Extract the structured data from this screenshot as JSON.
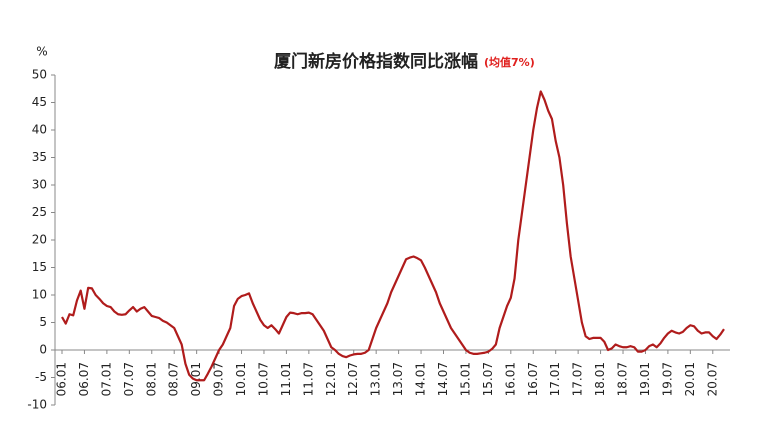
{
  "chart_data": {
    "type": "line",
    "title": "厦门新房价格指数同比涨幅",
    "annotation": "(均值7%)",
    "ylabel": "%",
    "color": "#b01c1c",
    "categories": [
      "06.01",
      null,
      null,
      null,
      null,
      null,
      "06.07",
      null,
      null,
      null,
      null,
      null,
      "07.01",
      null,
      null,
      null,
      null,
      null,
      "07.07",
      null,
      null,
      null,
      null,
      null,
      "08.01",
      null,
      null,
      null,
      null,
      null,
      "08.07",
      null,
      null,
      null,
      null,
      null,
      "09.01",
      null,
      null,
      null,
      null,
      null,
      "09.07",
      null,
      null,
      null,
      null,
      null,
      "10.01",
      null,
      null,
      null,
      null,
      null,
      "10.07",
      null,
      null,
      null,
      null,
      null,
      "11.01",
      null,
      null,
      null,
      null,
      null,
      "11.07",
      null,
      null,
      null,
      null,
      null,
      "12.01",
      null,
      null,
      null,
      null,
      null,
      "12.07",
      null,
      null,
      null,
      null,
      null,
      "13.01",
      null,
      null,
      null,
      null,
      null,
      "13.07",
      null,
      null,
      null,
      null,
      null,
      "14.01",
      null,
      null,
      null,
      null,
      null,
      "14.07",
      null,
      null,
      null,
      null,
      null,
      "15.01",
      null,
      null,
      null,
      null,
      null,
      "15.07",
      null,
      null,
      null,
      null,
      null,
      "16.01",
      null,
      null,
      null,
      null,
      null,
      "16.07",
      null,
      null,
      null,
      null,
      null,
      "17.01",
      null,
      null,
      null,
      null,
      null,
      "17.07",
      null,
      null,
      null,
      null,
      null,
      "18.01",
      null,
      null,
      null,
      null,
      null,
      "18.07",
      null,
      null,
      null,
      null,
      null,
      "19.01",
      null,
      null,
      null,
      null,
      null,
      "19.07",
      null,
      null,
      null,
      null,
      null,
      "20.01",
      null,
      null,
      null,
      null,
      null,
      "20.07",
      null,
      null,
      null
    ],
    "values": [
      6,
      4.8,
      6.5,
      6.3,
      9,
      10.8,
      7.5,
      11.3,
      11.2,
      10,
      9.3,
      8.5,
      8,
      7.8,
      7,
      6.5,
      6.4,
      6.5,
      7.2,
      7.8,
      7,
      7.5,
      7.8,
      7,
      6.2,
      6,
      5.8,
      5.3,
      5,
      4.5,
      4,
      2.5,
      1,
      -2.5,
      -4.5,
      -5.2,
      -5.5,
      -5.5,
      -5.5,
      -4.3,
      -3,
      -1.5,
      0,
      1,
      2.5,
      4,
      8,
      9.3,
      9.8,
      10,
      10.3,
      8.5,
      7,
      5.5,
      4.5,
      4,
      4.5,
      3.8,
      3,
      4.5,
      6,
      6.8,
      6.7,
      6.5,
      6.7,
      6.7,
      6.8,
      6.5,
      5.5,
      4.5,
      3.5,
      2,
      0.5,
      0,
      -0.7,
      -1.1,
      -1.3,
      -1,
      -0.8,
      -0.7,
      -0.7,
      -0.5,
      0,
      2,
      4,
      5.5,
      7,
      8.5,
      10.5,
      12,
      13.5,
      15,
      16.5,
      16.8,
      17,
      16.7,
      16.3,
      15,
      13.5,
      12,
      10.5,
      8.5,
      7,
      5.5,
      4,
      3,
      2,
      1,
      0,
      -0.5,
      -0.7,
      -0.7,
      -0.6,
      -0.5,
      -0.3,
      0.2,
      1,
      4,
      6,
      8,
      9.5,
      13,
      20,
      25,
      30,
      35,
      40,
      44,
      47,
      45.5,
      43.5,
      42,
      38,
      35,
      30,
      23,
      17,
      13,
      9,
      5,
      2.5,
      2,
      2.2,
      2.2,
      2.2,
      1.5,
      0,
      0.3,
      1,
      0.7,
      0.5,
      0.5,
      0.7,
      0.5,
      -0.3,
      -0.3,
      0,
      0.7,
      1,
      0.5,
      1.2,
      2.2,
      3,
      3.5,
      3.2,
      3,
      3.3,
      4,
      4.5,
      4.3,
      3.5,
      3,
      3.2,
      3.2,
      2.5,
      2,
      2.8,
      3.8
    ],
    "ylim": [
      -10,
      50
    ],
    "yticks": [
      -10,
      -5,
      0,
      5,
      10,
      15,
      20,
      25,
      30,
      35,
      40,
      45,
      50
    ]
  }
}
